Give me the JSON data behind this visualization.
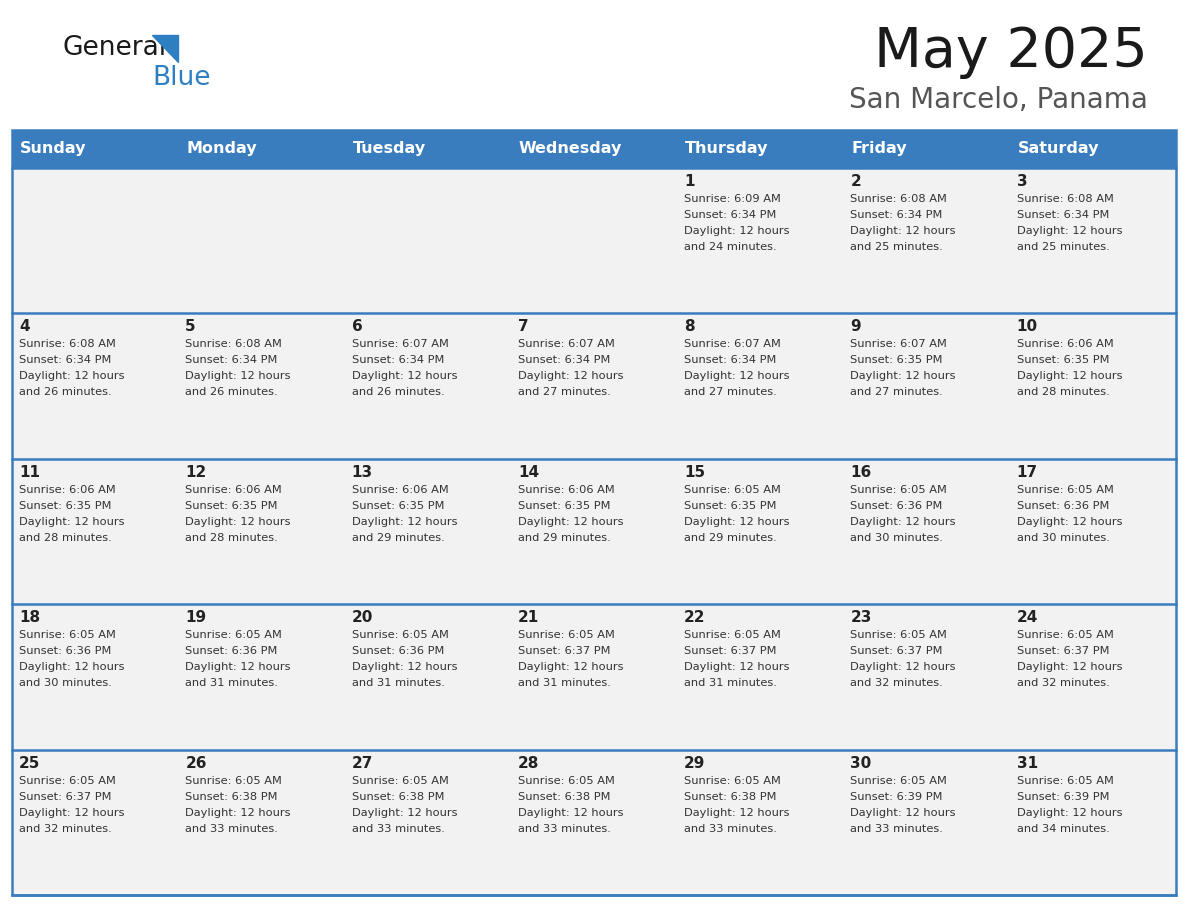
{
  "title": "May 2025",
  "subtitle": "San Marcelo, Panama",
  "header_color": "#3a7dbf",
  "header_text_color": "#ffffff",
  "cell_bg_color": "#ffffff",
  "cell_bg_alt": "#f2f2f2",
  "cell_border_color": "#3a7dbf",
  "day_number_color": "#222222",
  "info_text_color": "#333333",
  "days_of_week": [
    "Sunday",
    "Monday",
    "Tuesday",
    "Wednesday",
    "Thursday",
    "Friday",
    "Saturday"
  ],
  "weeks": [
    [
      {
        "day": null,
        "sunrise": null,
        "sunset": null,
        "daylight": null
      },
      {
        "day": null,
        "sunrise": null,
        "sunset": null,
        "daylight": null
      },
      {
        "day": null,
        "sunrise": null,
        "sunset": null,
        "daylight": null
      },
      {
        "day": null,
        "sunrise": null,
        "sunset": null,
        "daylight": null
      },
      {
        "day": 1,
        "sunrise": "6:09 AM",
        "sunset": "6:34 PM",
        "daylight": "12 hours and 24 minutes."
      },
      {
        "day": 2,
        "sunrise": "6:08 AM",
        "sunset": "6:34 PM",
        "daylight": "12 hours and 25 minutes."
      },
      {
        "day": 3,
        "sunrise": "6:08 AM",
        "sunset": "6:34 PM",
        "daylight": "12 hours and 25 minutes."
      }
    ],
    [
      {
        "day": 4,
        "sunrise": "6:08 AM",
        "sunset": "6:34 PM",
        "daylight": "12 hours and 26 minutes."
      },
      {
        "day": 5,
        "sunrise": "6:08 AM",
        "sunset": "6:34 PM",
        "daylight": "12 hours and 26 minutes."
      },
      {
        "day": 6,
        "sunrise": "6:07 AM",
        "sunset": "6:34 PM",
        "daylight": "12 hours and 26 minutes."
      },
      {
        "day": 7,
        "sunrise": "6:07 AM",
        "sunset": "6:34 PM",
        "daylight": "12 hours and 27 minutes."
      },
      {
        "day": 8,
        "sunrise": "6:07 AM",
        "sunset": "6:34 PM",
        "daylight": "12 hours and 27 minutes."
      },
      {
        "day": 9,
        "sunrise": "6:07 AM",
        "sunset": "6:35 PM",
        "daylight": "12 hours and 27 minutes."
      },
      {
        "day": 10,
        "sunrise": "6:06 AM",
        "sunset": "6:35 PM",
        "daylight": "12 hours and 28 minutes."
      }
    ],
    [
      {
        "day": 11,
        "sunrise": "6:06 AM",
        "sunset": "6:35 PM",
        "daylight": "12 hours and 28 minutes."
      },
      {
        "day": 12,
        "sunrise": "6:06 AM",
        "sunset": "6:35 PM",
        "daylight": "12 hours and 28 minutes."
      },
      {
        "day": 13,
        "sunrise": "6:06 AM",
        "sunset": "6:35 PM",
        "daylight": "12 hours and 29 minutes."
      },
      {
        "day": 14,
        "sunrise": "6:06 AM",
        "sunset": "6:35 PM",
        "daylight": "12 hours and 29 minutes."
      },
      {
        "day": 15,
        "sunrise": "6:05 AM",
        "sunset": "6:35 PM",
        "daylight": "12 hours and 29 minutes."
      },
      {
        "day": 16,
        "sunrise": "6:05 AM",
        "sunset": "6:36 PM",
        "daylight": "12 hours and 30 minutes."
      },
      {
        "day": 17,
        "sunrise": "6:05 AM",
        "sunset": "6:36 PM",
        "daylight": "12 hours and 30 minutes."
      }
    ],
    [
      {
        "day": 18,
        "sunrise": "6:05 AM",
        "sunset": "6:36 PM",
        "daylight": "12 hours and 30 minutes."
      },
      {
        "day": 19,
        "sunrise": "6:05 AM",
        "sunset": "6:36 PM",
        "daylight": "12 hours and 31 minutes."
      },
      {
        "day": 20,
        "sunrise": "6:05 AM",
        "sunset": "6:36 PM",
        "daylight": "12 hours and 31 minutes."
      },
      {
        "day": 21,
        "sunrise": "6:05 AM",
        "sunset": "6:37 PM",
        "daylight": "12 hours and 31 minutes."
      },
      {
        "day": 22,
        "sunrise": "6:05 AM",
        "sunset": "6:37 PM",
        "daylight": "12 hours and 31 minutes."
      },
      {
        "day": 23,
        "sunrise": "6:05 AM",
        "sunset": "6:37 PM",
        "daylight": "12 hours and 32 minutes."
      },
      {
        "day": 24,
        "sunrise": "6:05 AM",
        "sunset": "6:37 PM",
        "daylight": "12 hours and 32 minutes."
      }
    ],
    [
      {
        "day": 25,
        "sunrise": "6:05 AM",
        "sunset": "6:37 PM",
        "daylight": "12 hours and 32 minutes."
      },
      {
        "day": 26,
        "sunrise": "6:05 AM",
        "sunset": "6:38 PM",
        "daylight": "12 hours and 33 minutes."
      },
      {
        "day": 27,
        "sunrise": "6:05 AM",
        "sunset": "6:38 PM",
        "daylight": "12 hours and 33 minutes."
      },
      {
        "day": 28,
        "sunrise": "6:05 AM",
        "sunset": "6:38 PM",
        "daylight": "12 hours and 33 minutes."
      },
      {
        "day": 29,
        "sunrise": "6:05 AM",
        "sunset": "6:38 PM",
        "daylight": "12 hours and 33 minutes."
      },
      {
        "day": 30,
        "sunrise": "6:05 AM",
        "sunset": "6:39 PM",
        "daylight": "12 hours and 33 minutes."
      },
      {
        "day": 31,
        "sunrise": "6:05 AM",
        "sunset": "6:39 PM",
        "daylight": "12 hours and 34 minutes."
      }
    ]
  ],
  "logo_text_general": "General",
  "logo_text_blue": "Blue",
  "background_color": "#ffffff"
}
